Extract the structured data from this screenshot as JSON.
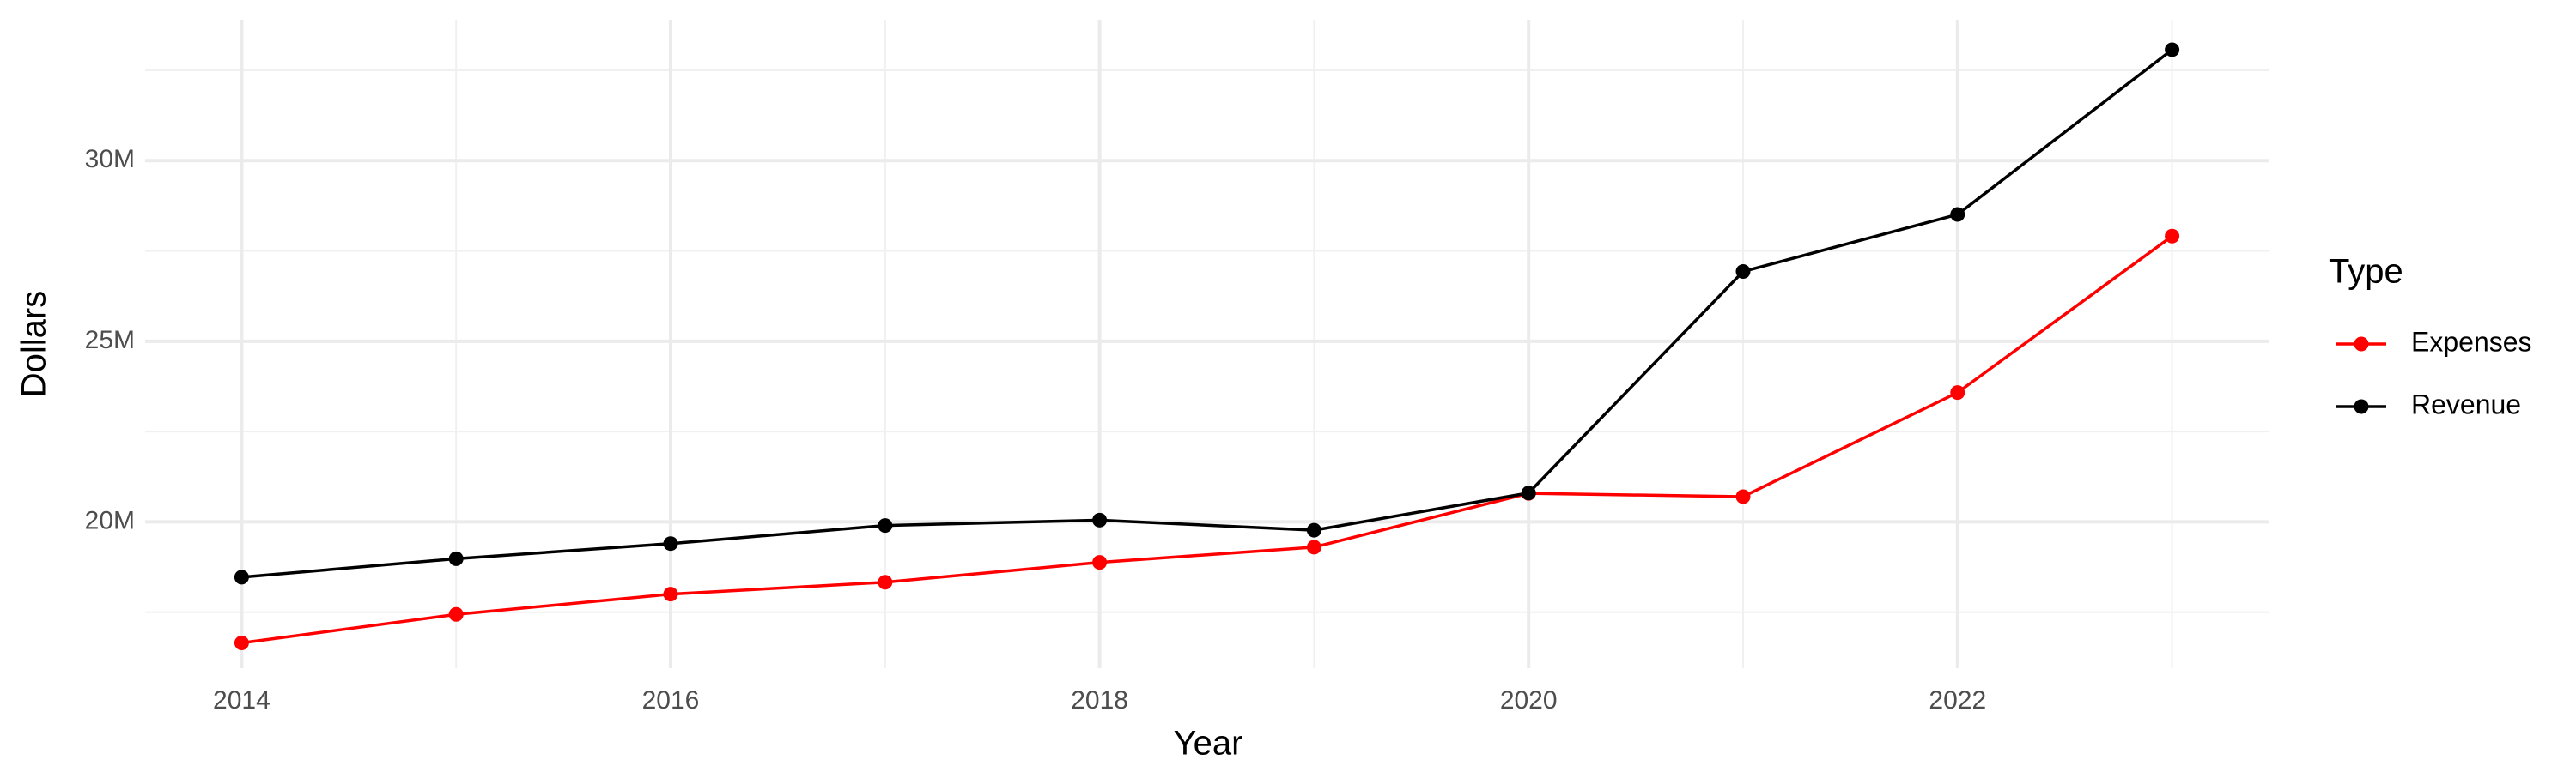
{
  "chart_data": {
    "type": "line",
    "x_label": "Year",
    "y_label": "Dollars",
    "legend_title": "Type",
    "legend": "right",
    "grid": true,
    "x": [
      2014,
      2015,
      2016,
      2017,
      2018,
      2019,
      2020,
      2021,
      2022,
      2023
    ],
    "series": [
      {
        "name": "Expenses",
        "color": "#ff0000",
        "values": [
          16650000,
          17440000,
          18000000,
          18330000,
          18880000,
          19300000,
          20790000,
          20700000,
          23580000,
          27910000
        ]
      },
      {
        "name": "Revenue",
        "color": "#000000",
        "values": [
          18470000,
          18980000,
          19400000,
          19900000,
          20050000,
          19770000,
          20800000,
          26930000,
          28510000,
          33070000
        ]
      }
    ],
    "xlim": [
      2013.55,
      2023.45
    ],
    "xticks": [
      2014,
      2016,
      2018,
      2020,
      2022
    ],
    "ylim": [
      15950000,
      33900000
    ],
    "yticks": [
      {
        "value": 20000000,
        "label": "20M"
      },
      {
        "value": 25000000,
        "label": "25M"
      },
      {
        "value": 30000000,
        "label": "30M"
      }
    ]
  }
}
